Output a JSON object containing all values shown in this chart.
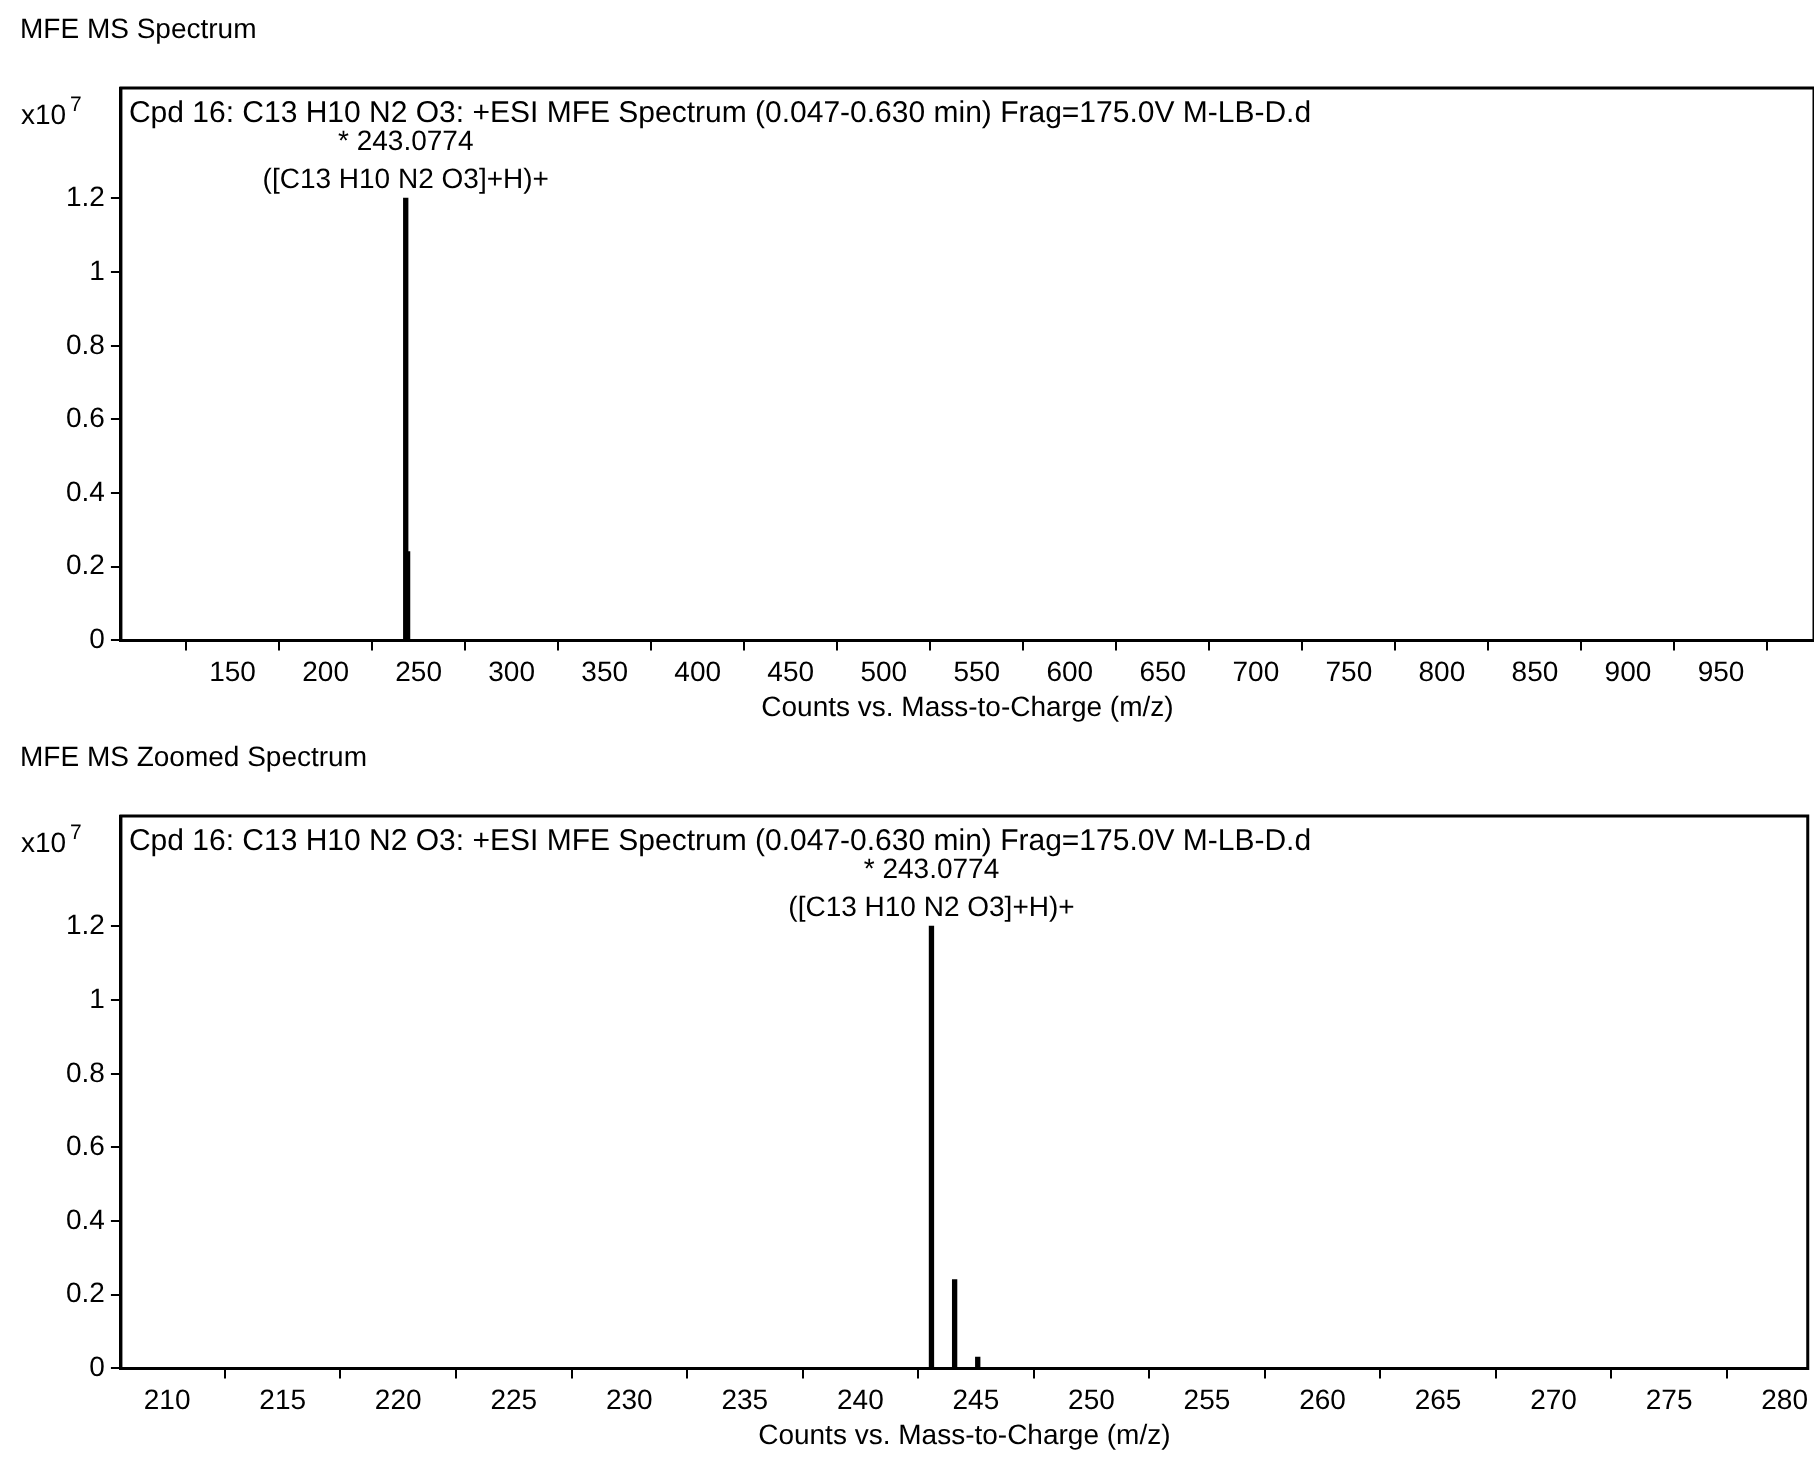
{
  "chart_data": [
    {
      "type": "bar",
      "title": "MFE MS Spectrum",
      "subtitle": "Cpd 16: C13 H10 N2 O3: +ESI MFE Spectrum (0.047-0.630 min) Frag=175.0V M-LB-D.d",
      "xlabel": "Counts vs. Mass-to-Charge (m/z)",
      "ylabel": "x10$^{7}$",
      "x": [
        243.0774,
        244.08
      ],
      "series": [
        {
          "color": "#000000",
          "values": [
            1.2,
            0.24
          ]
        }
      ],
      "annotations": [
        {
          "text": "* 243.0774",
          "x": 243.0774,
          "y": 1.2
        },
        "([C13 H10 N2 O3]+H)+"
      ],
      "xlim": [
        90,
        1000
      ],
      "xticks": [
        150,
        200,
        250,
        300,
        350,
        400,
        450,
        500,
        550,
        600,
        650,
        700,
        750,
        800,
        850,
        900,
        950
      ],
      "ylim": [
        0,
        1.5
      ],
      "yticks": [
        0,
        0.2,
        0.4,
        0.6,
        0.8,
        1,
        1.2
      ],
      "grid": false
    },
    {
      "type": "bar",
      "title": "MFE MS Zoomed Spectrum",
      "subtitle": "Cpd 16: C13 H10 N2 O3: +ESI MFE Spectrum (0.047-0.630 min) Frag=175.0V M-LB-D.d",
      "xlabel": "Counts vs. Mass-to-Charge (m/z)",
      "ylabel": "x10$^{7}$",
      "x": [
        243.0774,
        244.08,
        245.08
      ],
      "series": [
        {
          "color": "#000000",
          "values": [
            1.2,
            0.24,
            0.03
          ]
        }
      ],
      "annotations": [
        {
          "text": "* 243.0774",
          "x": 243.0774,
          "y": 1.2
        },
        "([C13 H10 N2 O3]+H)+"
      ],
      "xlim": [
        208,
        281
      ],
      "xticks": [
        210,
        215,
        220,
        225,
        230,
        235,
        240,
        245,
        250,
        255,
        260,
        265,
        270,
        275,
        280
      ],
      "ylim": [
        0,
        1.5
      ],
      "yticks": [
        0,
        0.2,
        0.4,
        0.6,
        0.8,
        1,
        1.2
      ],
      "grid": false
    }
  ]
}
